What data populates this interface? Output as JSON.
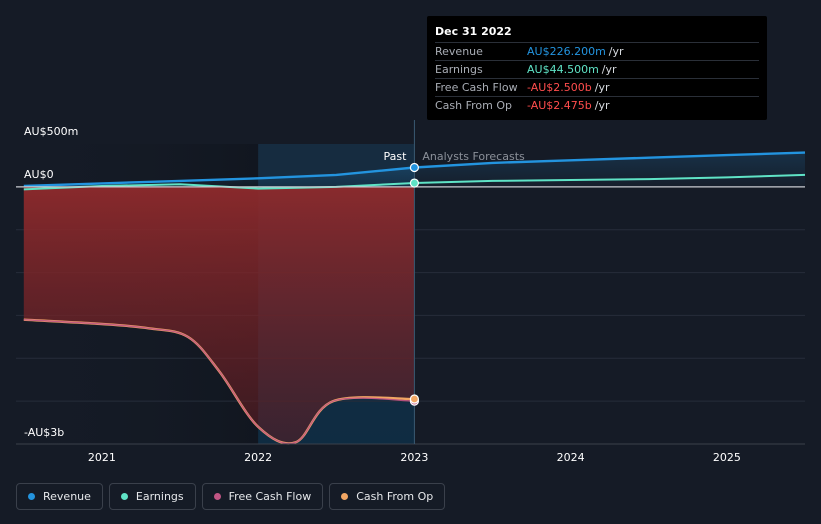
{
  "colors": {
    "revenue": "#2394df",
    "earnings": "#5fe3c6",
    "free_cash_flow": "#c15584",
    "cash_from_op": "#f2a663",
    "negative": "#ff4d4d",
    "background": "#151b26"
  },
  "tooltip": {
    "date": "Dec 31 2022",
    "rows": [
      {
        "name": "Revenue",
        "value": "AU$226.200m",
        "unit": "/yr",
        "color": "#2394df"
      },
      {
        "name": "Earnings",
        "value": "AU$44.500m",
        "unit": "/yr",
        "color": "#5fe3c6"
      },
      {
        "name": "Free Cash Flow",
        "value": "-AU$2.500b",
        "unit": "/yr",
        "color": "#ff4d4d"
      },
      {
        "name": "Cash From Op",
        "value": "-AU$2.475b",
        "unit": "/yr",
        "color": "#ff4d4d"
      }
    ]
  },
  "legend": [
    {
      "label": "Revenue",
      "color": "#2394df"
    },
    {
      "label": "Earnings",
      "color": "#5fe3c6"
    },
    {
      "label": "Free Cash Flow",
      "color": "#c15584"
    },
    {
      "label": "Cash From Op",
      "color": "#f2a663"
    }
  ],
  "chart_data": {
    "type": "line",
    "y_unit": "AU$ billions",
    "ylim": [
      -3.0,
      0.5
    ],
    "y_tick_labels": [
      {
        "value": 0.5,
        "label": "AU$500m"
      },
      {
        "value": 0,
        "label": "AU$0"
      },
      {
        "value": -3.0,
        "label": "-AU$3b"
      }
    ],
    "xlim": [
      2020.45,
      2025.5
    ],
    "x_ticks": [
      2021,
      2022,
      2023,
      2024,
      2025
    ],
    "x_tick_labels": [
      "2021",
      "2022",
      "2023",
      "2024",
      "2025"
    ],
    "past_label": "Past",
    "forecast_label": "Analysts Forecasts",
    "divider_x": 2023.0,
    "highlight_start_x": 2022.0,
    "series": [
      {
        "name": "Revenue",
        "key": "revenue",
        "past": [
          [
            2020.5,
            0.01
          ],
          [
            2021.0,
            0.04
          ],
          [
            2021.5,
            0.07
          ],
          [
            2022.0,
            0.1
          ],
          [
            2022.5,
            0.14
          ],
          [
            2023.0,
            0.226
          ]
        ],
        "forecast": [
          [
            2023.0,
            0.226
          ],
          [
            2023.5,
            0.28
          ],
          [
            2024.0,
            0.31
          ],
          [
            2024.5,
            0.34
          ],
          [
            2025.0,
            0.37
          ],
          [
            2025.5,
            0.4
          ]
        ]
      },
      {
        "name": "Earnings",
        "key": "earnings",
        "past": [
          [
            2020.5,
            -0.03
          ],
          [
            2021.0,
            0.01
          ],
          [
            2021.5,
            0.03
          ],
          [
            2022.0,
            -0.02
          ],
          [
            2022.5,
            0.0
          ],
          [
            2023.0,
            0.0445
          ]
        ],
        "forecast": [
          [
            2023.0,
            0.0445
          ],
          [
            2023.5,
            0.07
          ],
          [
            2024.0,
            0.08
          ],
          [
            2024.5,
            0.09
          ],
          [
            2025.0,
            0.11
          ],
          [
            2025.5,
            0.14
          ]
        ]
      },
      {
        "name": "Free Cash Flow",
        "key": "free_cash_flow",
        "past": [
          [
            2020.5,
            -1.55
          ],
          [
            2021.0,
            -1.6
          ],
          [
            2021.3,
            -1.65
          ],
          [
            2021.55,
            -1.75
          ],
          [
            2021.75,
            -2.15
          ],
          [
            2022.0,
            -2.8
          ],
          [
            2022.24,
            -2.98
          ],
          [
            2022.48,
            -2.5
          ],
          [
            2023.0,
            -2.5
          ]
        ]
      },
      {
        "name": "Cash From Op",
        "key": "cash_from_op",
        "past": [
          [
            2020.5,
            -1.55
          ],
          [
            2021.0,
            -1.6
          ],
          [
            2021.3,
            -1.65
          ],
          [
            2021.55,
            -1.75
          ],
          [
            2021.75,
            -2.15
          ],
          [
            2022.0,
            -2.8
          ],
          [
            2022.24,
            -2.98
          ],
          [
            2022.48,
            -2.5
          ],
          [
            2023.0,
            -2.475
          ]
        ]
      }
    ]
  }
}
